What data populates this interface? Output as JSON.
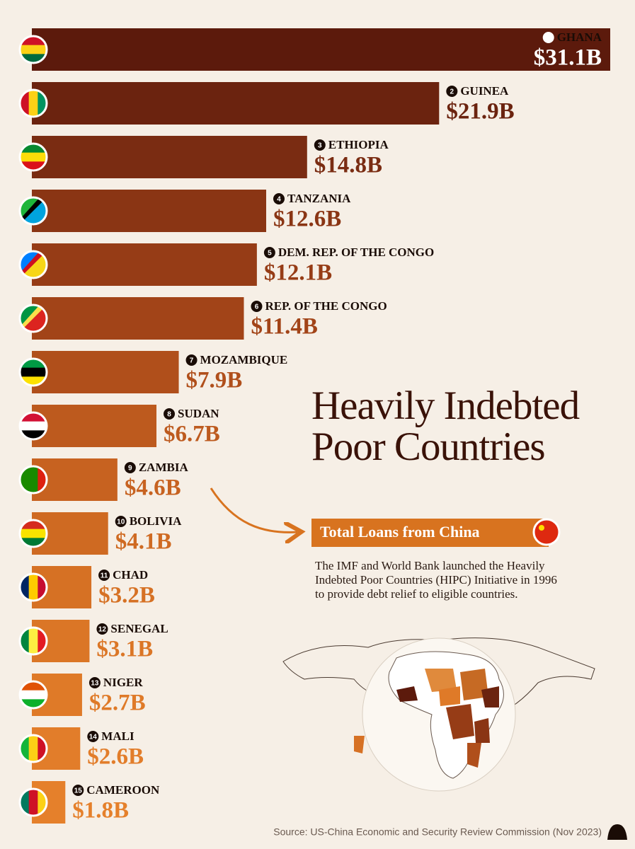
{
  "chart_data": {
    "type": "bar",
    "orientation": "horizontal",
    "title": "Heavily Indebted Poor Countries",
    "subtitle": "Total Loans from China",
    "description": "The IMF and World Bank launched the Heavily Indebted Poor Countries (HIPC) Initiative in 1996 to provide debt relief to eligible countries.",
    "source": "Source: US-China Economic and Security Review Commission (Nov 2023)",
    "ranks": [
      1,
      2,
      3,
      4,
      5,
      6,
      7,
      8,
      9,
      10,
      11,
      12,
      13,
      14,
      15
    ],
    "categories": [
      "GHANA",
      "GUINEA",
      "ETHIOPIA",
      "TANZANIA",
      "DEM. REP. OF THE CONGO",
      "REP. OF THE CONGO",
      "MOZAMBIQUE",
      "SUDAN",
      "ZAMBIA",
      "BOLIVIA",
      "CHAD",
      "SENEGAL",
      "NIGER",
      "MALI",
      "CAMEROON"
    ],
    "values": [
      31.1,
      21.9,
      14.8,
      12.6,
      12.1,
      11.4,
      7.9,
      6.7,
      4.6,
      4.1,
      3.2,
      3.1,
      2.7,
      2.6,
      1.8
    ],
    "value_labels": [
      "$31.1B",
      "$21.9B",
      "$14.8B",
      "$12.6B",
      "$12.1B",
      "$11.4B",
      "$7.9B",
      "$6.7B",
      "$4.6B",
      "$4.1B",
      "$3.2B",
      "$3.1B",
      "$2.7B",
      "$2.6B",
      "$1.8B"
    ],
    "colors": [
      "#5c1a0c",
      "#6b230f",
      "#7a2c12",
      "#8a3514",
      "#963c16",
      "#a24418",
      "#b04f1b",
      "#bd5a1e",
      "#c76220",
      "#cf6a22",
      "#d67124",
      "#db7626",
      "#df7a28",
      "#e27d2a",
      "#e5802b"
    ]
  }
}
